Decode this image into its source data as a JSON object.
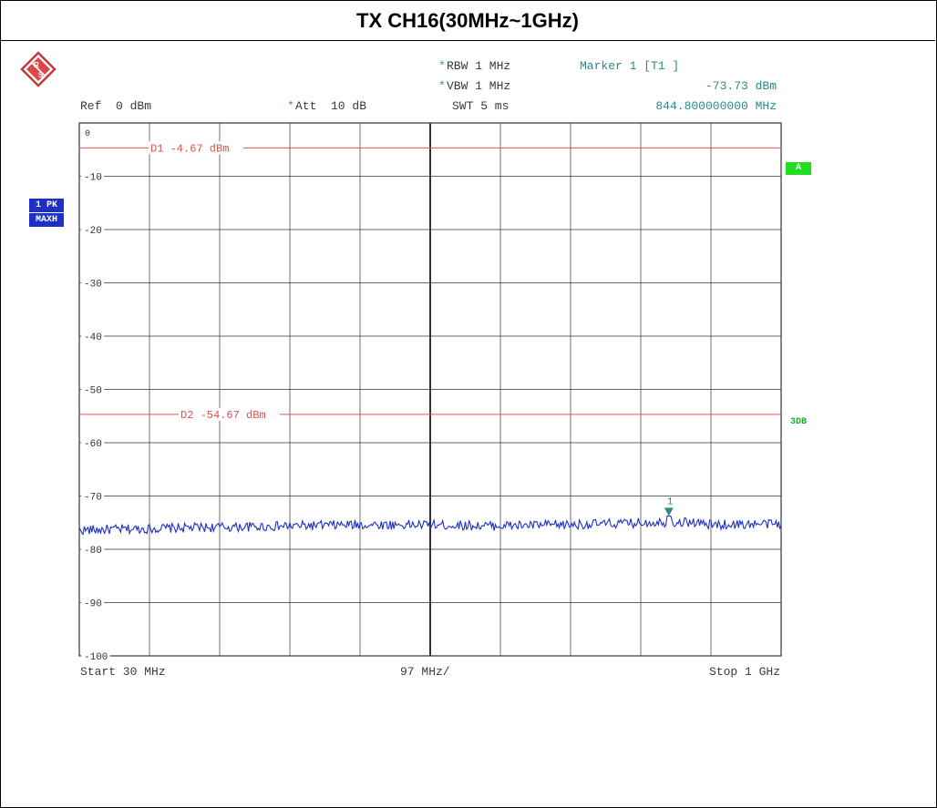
{
  "title": "TX CH16(30MHz~1GHz)",
  "header": {
    "rbw_star": "*",
    "rbw": "RBW 1 MHz",
    "vbw_star": "*",
    "vbw": "VBW 1 MHz",
    "swt": "SWT 5 ms",
    "marker_title": "Marker 1 [T1 ]",
    "marker_level": "-73.73 dBm",
    "marker_freq": "844.800000000 MHz",
    "ref": "Ref  0 dBm",
    "att_star": "*",
    "att": "Att  10 dB"
  },
  "side_badges": {
    "trace": "1 PK",
    "mode": "MAXH"
  },
  "right_badges": {
    "a": "A",
    "threedb": "3DB"
  },
  "footer": {
    "start": "Start 30 MHz",
    "span": "97 MHz/",
    "stop": "Stop 1 GHz"
  },
  "colors": {
    "trace": "#1e2fc8",
    "display_line": "#e05050",
    "grid": "#333333",
    "badge_green": "#22dd22",
    "marker": "#2a8a8a"
  },
  "chart_data": {
    "type": "line",
    "xlim": [
      30,
      1000
    ],
    "ylim": [
      -100,
      0
    ],
    "x_unit": "MHz",
    "y_unit": "dBm",
    "grid": true,
    "y_ticks": [
      0,
      -10,
      -20,
      -30,
      -40,
      -50,
      -60,
      -70,
      -80,
      -90,
      -100
    ],
    "y_tick_labels": [
      "0",
      "-10",
      "-20",
      "-30",
      "-40",
      "-50",
      "-60",
      "-70",
      "-80",
      "-90",
      "-100"
    ],
    "display_lines": [
      {
        "name": "D1",
        "label": "D1  -4.67  dBm",
        "value": -4.67
      },
      {
        "name": "D2",
        "label": "D2  -54.67  dBm",
        "value": -54.67
      }
    ],
    "marker": {
      "label": "1",
      "x": 844.8,
      "y": -73.73
    },
    "series": [
      {
        "x": [
          30,
          100,
          200,
          300,
          400,
          500,
          600,
          700,
          800,
          844.8,
          900,
          1000
        ],
        "y": [
          -76.0,
          -75.8,
          -75.5,
          -75.3,
          -75.0,
          -75.0,
          -75.2,
          -75.0,
          -74.7,
          -73.73,
          -75.0,
          -74.8
        ]
      }
    ]
  }
}
